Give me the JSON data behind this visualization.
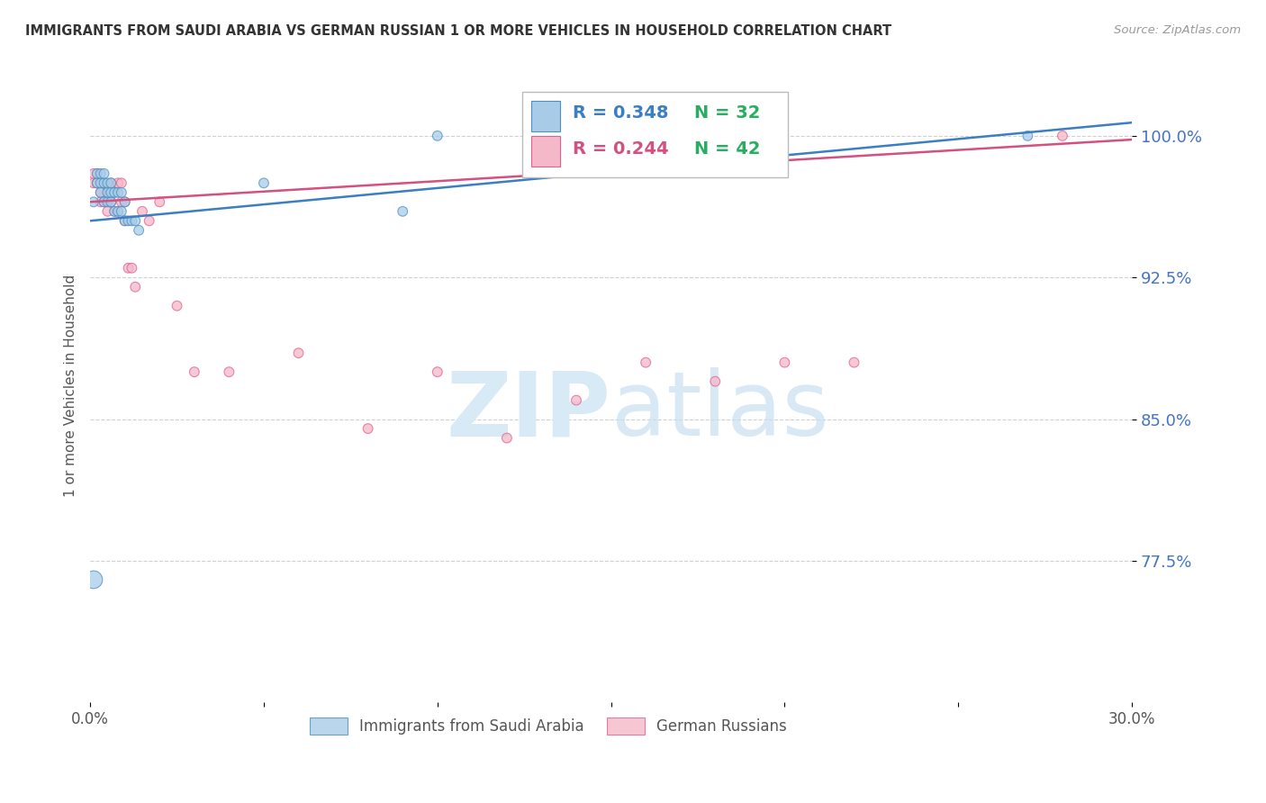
{
  "title": "IMMIGRANTS FROM SAUDI ARABIA VS GERMAN RUSSIAN 1 OR MORE VEHICLES IN HOUSEHOLD CORRELATION CHART",
  "source": "Source: ZipAtlas.com",
  "ylabel": "1 or more Vehicles in Household",
  "legend_R_blue": "R = 0.348",
  "legend_N_blue": "N = 32",
  "legend_R_pink": "R = 0.244",
  "legend_N_pink": "N = 42",
  "legend_label_blue": "Immigrants from Saudi Arabia",
  "legend_label_pink": "German Russians",
  "blue_color": "#a8cce8",
  "pink_color": "#f5b8c8",
  "blue_edge_color": "#4a90c4",
  "pink_edge_color": "#e06090",
  "blue_line_color": "#3a7fc1",
  "pink_line_color": "#d45080",
  "blue_R_color": "#3a7fc1",
  "green_N_color": "#27ae60",
  "pink_R_color": "#d45080",
  "xlim": [
    0.0,
    0.3
  ],
  "ylim": [
    0.7,
    1.035
  ],
  "yticks": [
    0.775,
    0.85,
    0.925,
    1.0
  ],
  "ytick_labels": [
    "77.5%",
    "85.0%",
    "92.5%",
    "100.0%"
  ],
  "xtick_positions": [
    0.0,
    0.05,
    0.1,
    0.15,
    0.2,
    0.25,
    0.3
  ],
  "xtick_labels": [
    "0.0%",
    "",
    "",
    "",
    "",
    "",
    "30.0%"
  ],
  "scatter_blue_x": [
    0.001,
    0.002,
    0.002,
    0.003,
    0.003,
    0.003,
    0.004,
    0.004,
    0.004,
    0.005,
    0.005,
    0.005,
    0.006,
    0.006,
    0.006,
    0.007,
    0.007,
    0.008,
    0.008,
    0.009,
    0.009,
    0.01,
    0.01,
    0.011,
    0.012,
    0.013,
    0.014,
    0.05,
    0.09,
    0.1,
    0.27,
    0.001
  ],
  "scatter_blue_y": [
    0.965,
    0.975,
    0.98,
    0.97,
    0.975,
    0.98,
    0.965,
    0.975,
    0.98,
    0.965,
    0.97,
    0.975,
    0.965,
    0.97,
    0.975,
    0.96,
    0.97,
    0.96,
    0.97,
    0.96,
    0.97,
    0.955,
    0.965,
    0.955,
    0.955,
    0.955,
    0.95,
    0.975,
    0.96,
    1.0,
    1.0,
    0.765
  ],
  "scatter_blue_size": [
    60,
    60,
    60,
    60,
    60,
    60,
    60,
    60,
    60,
    60,
    60,
    60,
    60,
    60,
    60,
    60,
    60,
    60,
    60,
    60,
    60,
    60,
    60,
    60,
    60,
    60,
    60,
    60,
    60,
    60,
    60,
    200
  ],
  "scatter_pink_x": [
    0.001,
    0.002,
    0.002,
    0.003,
    0.003,
    0.004,
    0.004,
    0.005,
    0.006,
    0.006,
    0.007,
    0.007,
    0.008,
    0.008,
    0.009,
    0.009,
    0.01,
    0.01,
    0.011,
    0.012,
    0.013,
    0.015,
    0.017,
    0.02,
    0.025,
    0.03,
    0.04,
    0.06,
    0.08,
    0.1,
    0.12,
    0.14,
    0.16,
    0.18,
    0.2,
    0.22,
    0.001,
    0.002,
    0.003,
    0.004,
    0.005,
    0.28
  ],
  "scatter_pink_y": [
    0.975,
    0.975,
    0.98,
    0.965,
    0.975,
    0.97,
    0.975,
    0.965,
    0.965,
    0.975,
    0.96,
    0.97,
    0.96,
    0.975,
    0.965,
    0.975,
    0.955,
    0.965,
    0.93,
    0.93,
    0.92,
    0.96,
    0.955,
    0.965,
    0.91,
    0.875,
    0.875,
    0.885,
    0.845,
    0.875,
    0.84,
    0.86,
    0.88,
    0.87,
    0.88,
    0.88,
    0.98,
    0.975,
    0.97,
    0.965,
    0.96,
    1.0
  ],
  "scatter_pink_size": [
    60,
    60,
    60,
    60,
    60,
    60,
    60,
    60,
    60,
    60,
    60,
    60,
    60,
    60,
    60,
    60,
    60,
    60,
    60,
    60,
    60,
    60,
    60,
    60,
    60,
    60,
    60,
    60,
    60,
    60,
    60,
    60,
    60,
    60,
    60,
    60,
    60,
    60,
    60,
    60,
    60,
    60
  ],
  "watermark_zip": "ZIP",
  "watermark_atlas": "atlas",
  "watermark_color": "#d8eaf6",
  "background_color": "#ffffff",
  "grid_color": "#d0d0d0"
}
